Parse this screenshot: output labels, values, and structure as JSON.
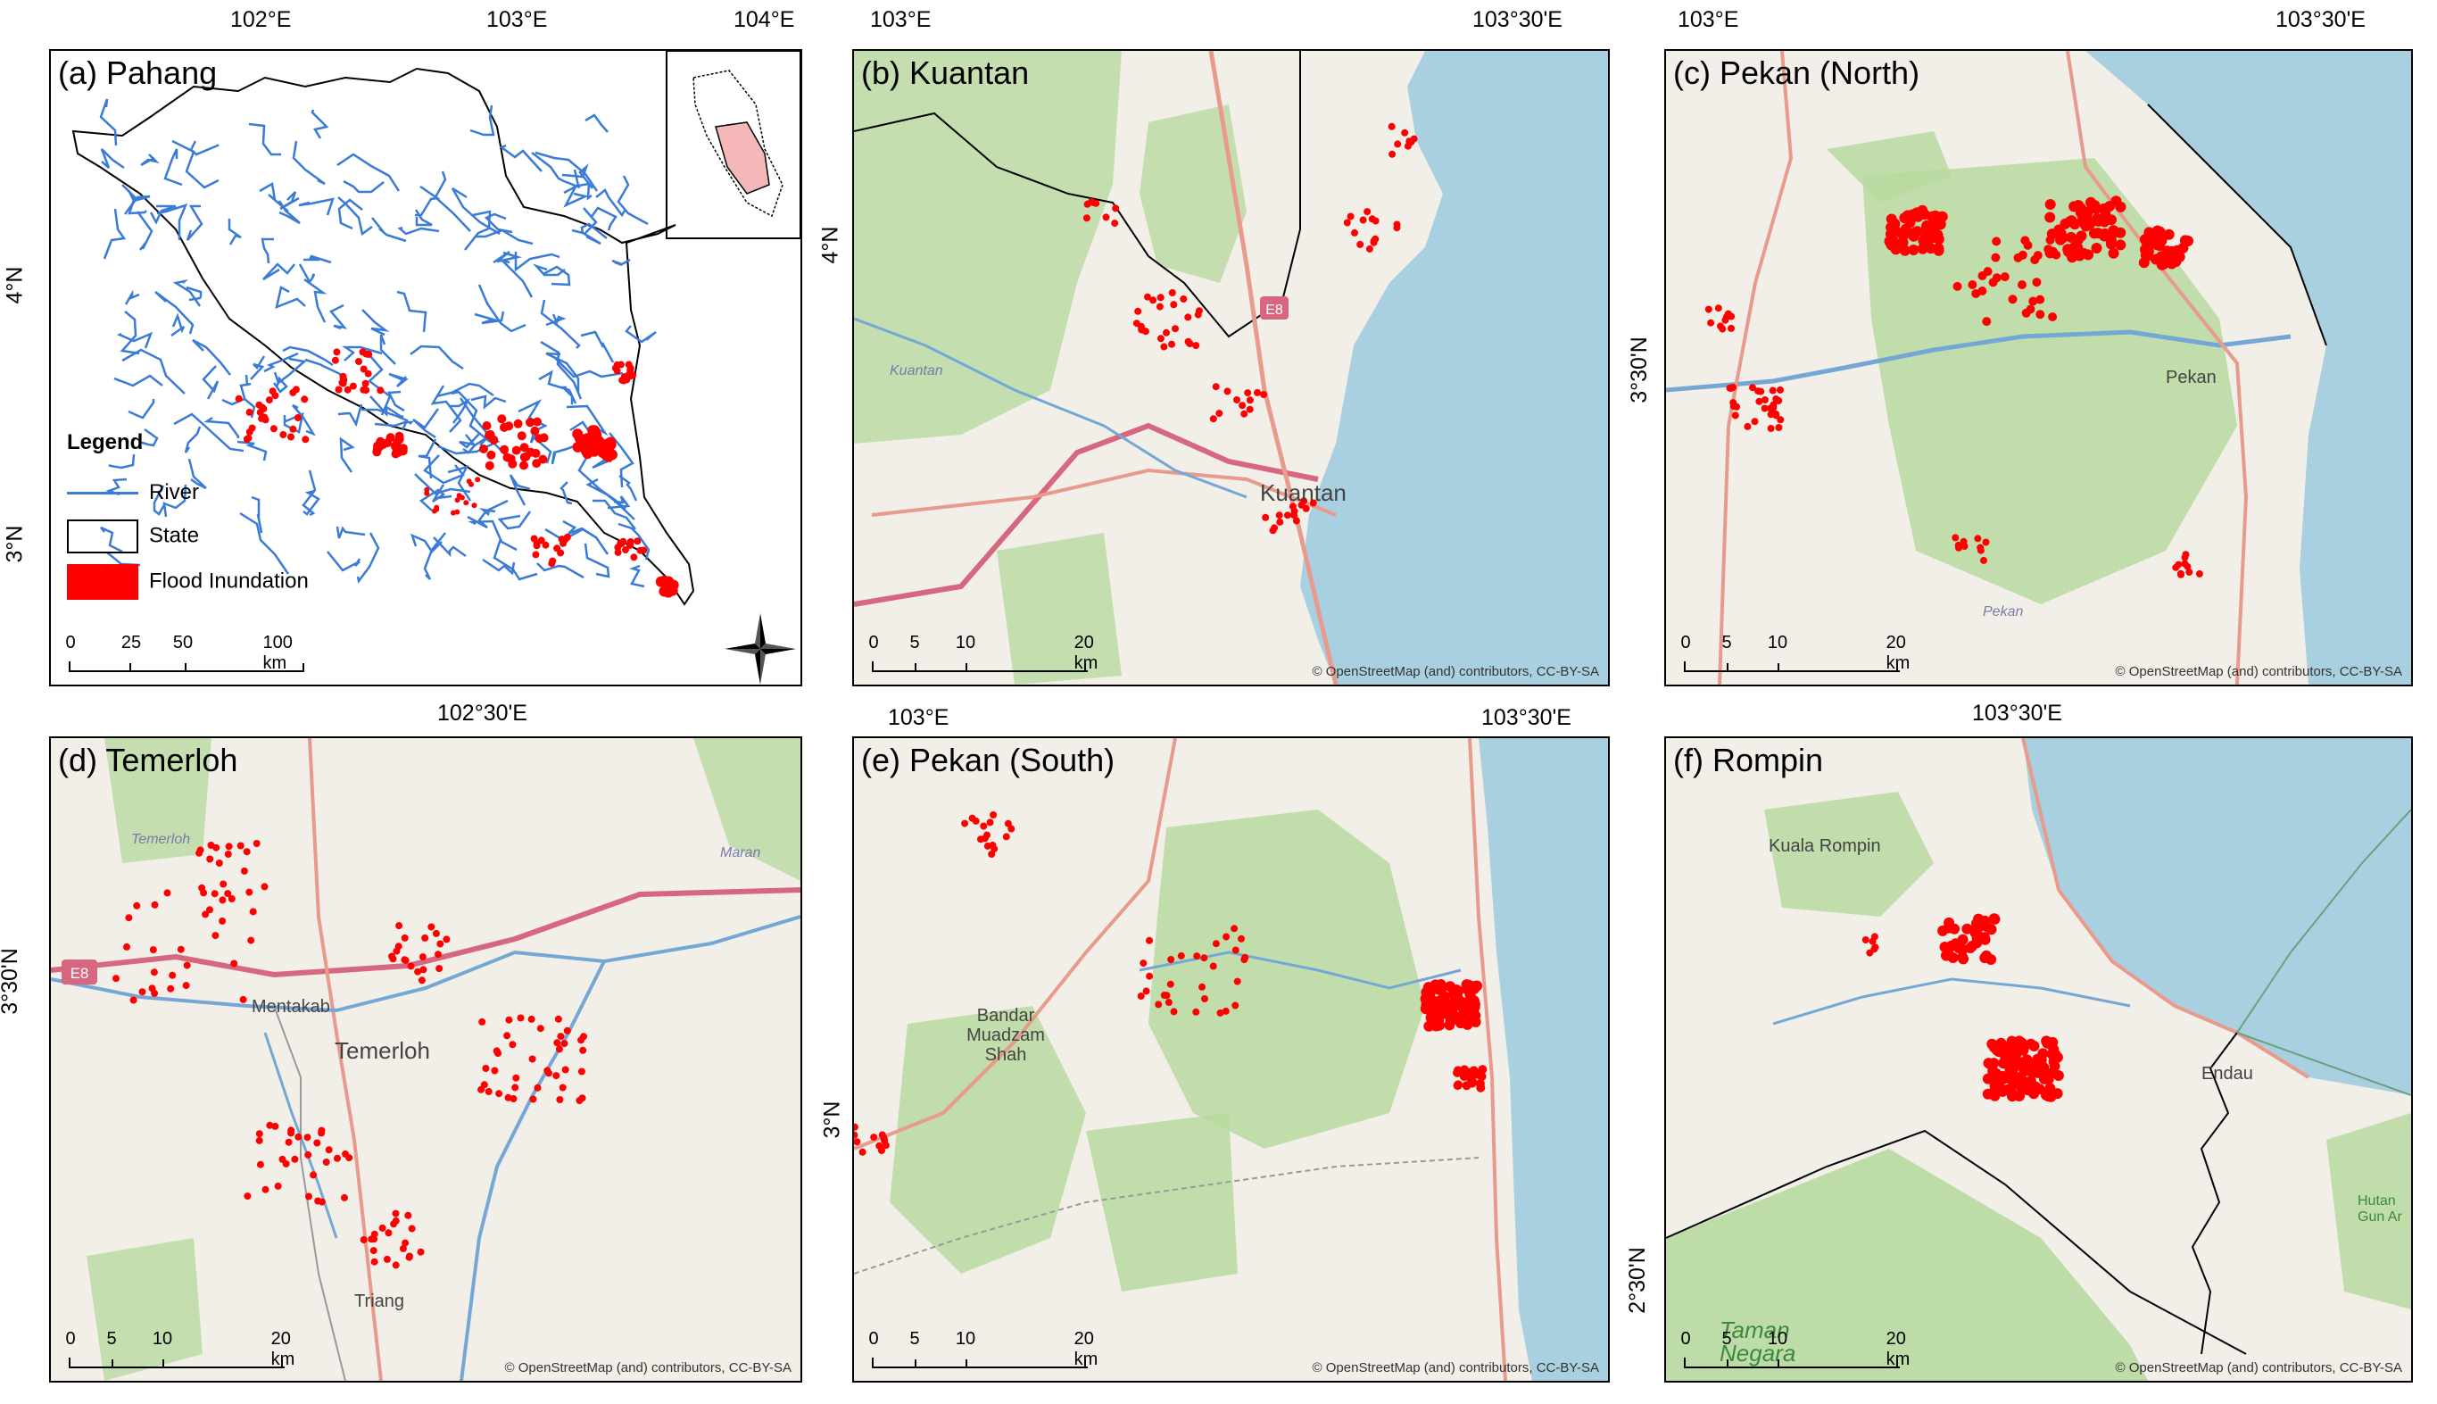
{
  "top_lon_ticks_a": [
    "102°E",
    "103°E",
    "104°E"
  ],
  "top_lon_ticks_b": [
    "103°E",
    "103°30'E"
  ],
  "top_lon_ticks_c": [
    "103°E",
    "103°30'E"
  ],
  "mid_lon_ticks_d": [
    "102°30'E"
  ],
  "mid_lon_ticks_e": [
    "103°E",
    "103°30'E"
  ],
  "mid_lon_ticks_f": [
    "103°30'E"
  ],
  "lat_ticks_a": [
    "4°N",
    "3°N"
  ],
  "lat_ticks_b": [
    "4°N"
  ],
  "lat_ticks_c": [
    "3°30'N"
  ],
  "lat_ticks_d": [
    "3°30'N"
  ],
  "lat_ticks_e": [
    "3°N"
  ],
  "lat_ticks_f": [
    "2°30'N"
  ],
  "panels": {
    "a": {
      "title": "(a) Pahang",
      "legend": {
        "heading": "Legend",
        "river": "River",
        "state": "State",
        "flood": "Flood Inundation"
      },
      "scale": [
        "0",
        "25",
        "50",
        "100 km"
      ]
    },
    "b": {
      "title": "(b) Kuantan",
      "scale": [
        "0",
        "5",
        "10",
        "20 km"
      ],
      "places": {
        "road": "E8",
        "town": "Kuantan",
        "river": "Kuantan"
      }
    },
    "c": {
      "title": "(c) Pekan (North)",
      "scale": [
        "0",
        "5",
        "10",
        "20 km"
      ],
      "places": {
        "town": "Pekan",
        "district": "Pekan"
      }
    },
    "d": {
      "title": "(d) Temerloh",
      "scale": [
        "0",
        "5",
        "10",
        "20 km"
      ],
      "places": {
        "district": "Temerloh",
        "road": "E8",
        "town1": "Mentakab",
        "town2": "Temerloh",
        "town3": "Triang",
        "district2": "Maran"
      }
    },
    "e": {
      "title": "(e) Pekan (South)",
      "scale": [
        "0",
        "5",
        "10",
        "20 km"
      ],
      "places": {
        "town": "Bandar Muadzam Shah"
      }
    },
    "f": {
      "title": "(f) Rompin",
      "scale": [
        "0",
        "5",
        "10",
        "20 km"
      ],
      "places": {
        "town1": "Kuala Rompin",
        "town2": "Endau",
        "park": "Taman Negara",
        "park2": "Hutan Gun Ar"
      }
    }
  },
  "attribution": "© OpenStreetMap (and) contributors, CC-BY-SA",
  "colors": {
    "flood": "#ff0000",
    "river": "#3a7bd5",
    "sea": "#a9d0e0",
    "forest": "#b8d9a0",
    "land": "#f2efe9",
    "road": "#e89a8c",
    "motorway": "#d6677e",
    "highlight": "#f5b8b8"
  }
}
